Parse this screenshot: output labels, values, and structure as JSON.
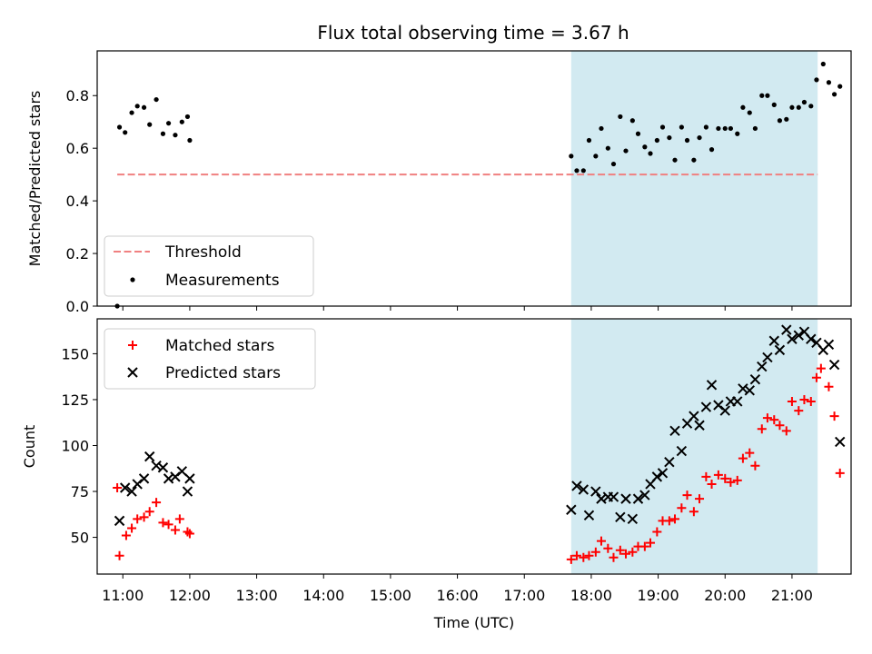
{
  "title": "Flux total observing time = 3.67 h",
  "colors": {
    "threshold": "#f08080",
    "measurement": "#000000",
    "matched": "#ff0000",
    "predicted": "#000000",
    "span": "#add8e6"
  },
  "chart_data": [
    {
      "type": "scatter",
      "panel": "top",
      "xlabel": "",
      "ylabel": "Matched/Predicted stars",
      "xlim": [
        "10:37",
        "21:53"
      ],
      "ylim": [
        0,
        0.97
      ],
      "yticks": [
        "0.0",
        "0.2",
        "0.4",
        "0.6",
        "0.8"
      ],
      "grid": false,
      "legend_placement": "lower-left",
      "highlight_span": {
        "x0": "17:42",
        "x1": "21:23"
      },
      "threshold": {
        "name": "Threshold",
        "y": 0.5,
        "x0": "10:55",
        "x1": "21:23",
        "style": "dashed"
      },
      "series": [
        {
          "name": "Measurements",
          "marker": "dot",
          "points": [
            [
              "10:55",
              0.0
            ],
            [
              "10:57",
              0.68
            ],
            [
              "11:02",
              0.66
            ],
            [
              "11:08",
              0.735
            ],
            [
              "11:13",
              0.76
            ],
            [
              "11:19",
              0.755
            ],
            [
              "11:24",
              0.69
            ],
            [
              "11:30",
              0.785
            ],
            [
              "11:36",
              0.655
            ],
            [
              "11:41",
              0.695
            ],
            [
              "11:47",
              0.65
            ],
            [
              "11:53",
              0.7
            ],
            [
              "11:58",
              0.72
            ],
            [
              "12:00",
              0.63
            ],
            [
              "17:42",
              0.57
            ],
            [
              "17:47",
              0.515
            ],
            [
              "17:53",
              0.515
            ],
            [
              "17:58",
              0.63
            ],
            [
              "18:04",
              0.57
            ],
            [
              "18:09",
              0.675
            ],
            [
              "18:15",
              0.6
            ],
            [
              "18:20",
              0.54
            ],
            [
              "18:26",
              0.72
            ],
            [
              "18:31",
              0.59
            ],
            [
              "18:37",
              0.705
            ],
            [
              "18:42",
              0.655
            ],
            [
              "18:48",
              0.605
            ],
            [
              "18:53",
              0.58
            ],
            [
              "18:59",
              0.63
            ],
            [
              "19:04",
              0.68
            ],
            [
              "19:10",
              0.64
            ],
            [
              "19:15",
              0.555
            ],
            [
              "19:21",
              0.68
            ],
            [
              "19:26",
              0.63
            ],
            [
              "19:32",
              0.555
            ],
            [
              "19:37",
              0.64
            ],
            [
              "19:43",
              0.68
            ],
            [
              "19:48",
              0.595
            ],
            [
              "19:54",
              0.675
            ],
            [
              "20:00",
              0.675
            ],
            [
              "20:05",
              0.675
            ],
            [
              "20:11",
              0.655
            ],
            [
              "20:16",
              0.755
            ],
            [
              "20:22",
              0.735
            ],
            [
              "20:27",
              0.675
            ],
            [
              "20:33",
              0.8
            ],
            [
              "20:38",
              0.8
            ],
            [
              "20:44",
              0.765
            ],
            [
              "20:49",
              0.705
            ],
            [
              "20:55",
              0.71
            ],
            [
              "21:00",
              0.755
            ],
            [
              "21:06",
              0.755
            ],
            [
              "21:11",
              0.775
            ],
            [
              "21:17",
              0.76
            ],
            [
              "21:22",
              0.86
            ],
            [
              "21:28",
              0.92
            ],
            [
              "21:33",
              0.85
            ],
            [
              "21:38",
              0.805
            ],
            [
              "21:43",
              0.835
            ]
          ]
        }
      ]
    },
    {
      "type": "scatter",
      "panel": "bottom",
      "xlabel": "Time (UTC)",
      "ylabel": "Count",
      "xlim": [
        "10:37",
        "21:53"
      ],
      "ylim": [
        30,
        169
      ],
      "xticks": [
        "11:00",
        "12:00",
        "13:00",
        "14:00",
        "15:00",
        "16:00",
        "17:00",
        "18:00",
        "19:00",
        "20:00",
        "21:00"
      ],
      "yticks": [
        "50",
        "75",
        "100",
        "125",
        "150"
      ],
      "grid": false,
      "legend_placement": "upper-left",
      "highlight_span": {
        "x0": "17:42",
        "x1": "21:23"
      },
      "series": [
        {
          "name": "Matched stars",
          "marker": "plus",
          "points": [
            [
              "10:55",
              77
            ],
            [
              "10:57",
              40
            ],
            [
              "11:03",
              51
            ],
            [
              "11:08",
              55
            ],
            [
              "11:13",
              60
            ],
            [
              "11:19",
              61
            ],
            [
              "11:24",
              64
            ],
            [
              "11:30",
              69
            ],
            [
              "11:36",
              58
            ],
            [
              "11:41",
              57
            ],
            [
              "11:47",
              54
            ],
            [
              "11:51",
              60
            ],
            [
              "11:58",
              53
            ],
            [
              "12:00",
              52
            ],
            [
              "17:42",
              38
            ],
            [
              "17:47",
              40
            ],
            [
              "17:53",
              39
            ],
            [
              "17:58",
              40
            ],
            [
              "18:04",
              42
            ],
            [
              "18:09",
              48
            ],
            [
              "18:15",
              44
            ],
            [
              "18:20",
              39
            ],
            [
              "18:26",
              43
            ],
            [
              "18:31",
              41
            ],
            [
              "18:37",
              42
            ],
            [
              "18:42",
              45
            ],
            [
              "18:48",
              45
            ],
            [
              "18:53",
              47
            ],
            [
              "18:59",
              53
            ],
            [
              "19:04",
              59
            ],
            [
              "19:10",
              59
            ],
            [
              "19:15",
              60
            ],
            [
              "19:21",
              66
            ],
            [
              "19:26",
              73
            ],
            [
              "19:32",
              64
            ],
            [
              "19:37",
              71
            ],
            [
              "19:43",
              83
            ],
            [
              "19:48",
              79
            ],
            [
              "19:54",
              84
            ],
            [
              "20:00",
              82
            ],
            [
              "20:05",
              80
            ],
            [
              "20:11",
              81
            ],
            [
              "20:16",
              93
            ],
            [
              "20:22",
              96
            ],
            [
              "20:27",
              89
            ],
            [
              "20:33",
              109
            ],
            [
              "20:38",
              115
            ],
            [
              "20:44",
              114
            ],
            [
              "20:49",
              111
            ],
            [
              "20:55",
              108
            ],
            [
              "21:00",
              124
            ],
            [
              "21:06",
              119
            ],
            [
              "21:11",
              125
            ],
            [
              "21:17",
              124
            ],
            [
              "21:22",
              137
            ],
            [
              "21:26",
              142
            ],
            [
              "21:33",
              132
            ],
            [
              "21:38",
              116
            ],
            [
              "21:43",
              85
            ]
          ]
        },
        {
          "name": "Predicted stars",
          "marker": "x",
          "points": [
            [
              "10:57",
              59
            ],
            [
              "11:02",
              77
            ],
            [
              "11:08",
              75
            ],
            [
              "11:13",
              79
            ],
            [
              "11:19",
              82
            ],
            [
              "11:24",
              94
            ],
            [
              "11:30",
              89
            ],
            [
              "11:36",
              88
            ],
            [
              "11:41",
              82
            ],
            [
              "11:47",
              83
            ],
            [
              "11:53",
              86
            ],
            [
              "11:58",
              75
            ],
            [
              "12:00",
              82
            ],
            [
              "17:42",
              65
            ],
            [
              "17:47",
              78
            ],
            [
              "17:53",
              76
            ],
            [
              "17:58",
              62
            ],
            [
              "18:04",
              75
            ],
            [
              "18:09",
              71
            ],
            [
              "18:15",
              72
            ],
            [
              "18:20",
              72
            ],
            [
              "18:26",
              61
            ],
            [
              "18:31",
              71
            ],
            [
              "18:37",
              60
            ],
            [
              "18:42",
              71
            ],
            [
              "18:48",
              73
            ],
            [
              "18:53",
              79
            ],
            [
              "18:59",
              83
            ],
            [
              "19:04",
              85
            ],
            [
              "19:10",
              91
            ],
            [
              "19:15",
              108
            ],
            [
              "19:21",
              97
            ],
            [
              "19:26",
              112
            ],
            [
              "19:32",
              116
            ],
            [
              "19:37",
              111
            ],
            [
              "19:43",
              121
            ],
            [
              "19:48",
              133
            ],
            [
              "19:54",
              122
            ],
            [
              "20:00",
              119
            ],
            [
              "20:05",
              124
            ],
            [
              "20:11",
              124
            ],
            [
              "20:16",
              131
            ],
            [
              "20:22",
              130
            ],
            [
              "20:27",
              136
            ],
            [
              "20:33",
              143
            ],
            [
              "20:38",
              148
            ],
            [
              "20:44",
              157
            ],
            [
              "20:49",
              152
            ],
            [
              "20:55",
              163
            ],
            [
              "21:00",
              158
            ],
            [
              "21:06",
              160
            ],
            [
              "21:11",
              162
            ],
            [
              "21:17",
              158
            ],
            [
              "21:22",
              156
            ],
            [
              "21:28",
              152
            ],
            [
              "21:33",
              155
            ],
            [
              "21:38",
              144
            ],
            [
              "21:43",
              102
            ]
          ]
        }
      ]
    }
  ]
}
